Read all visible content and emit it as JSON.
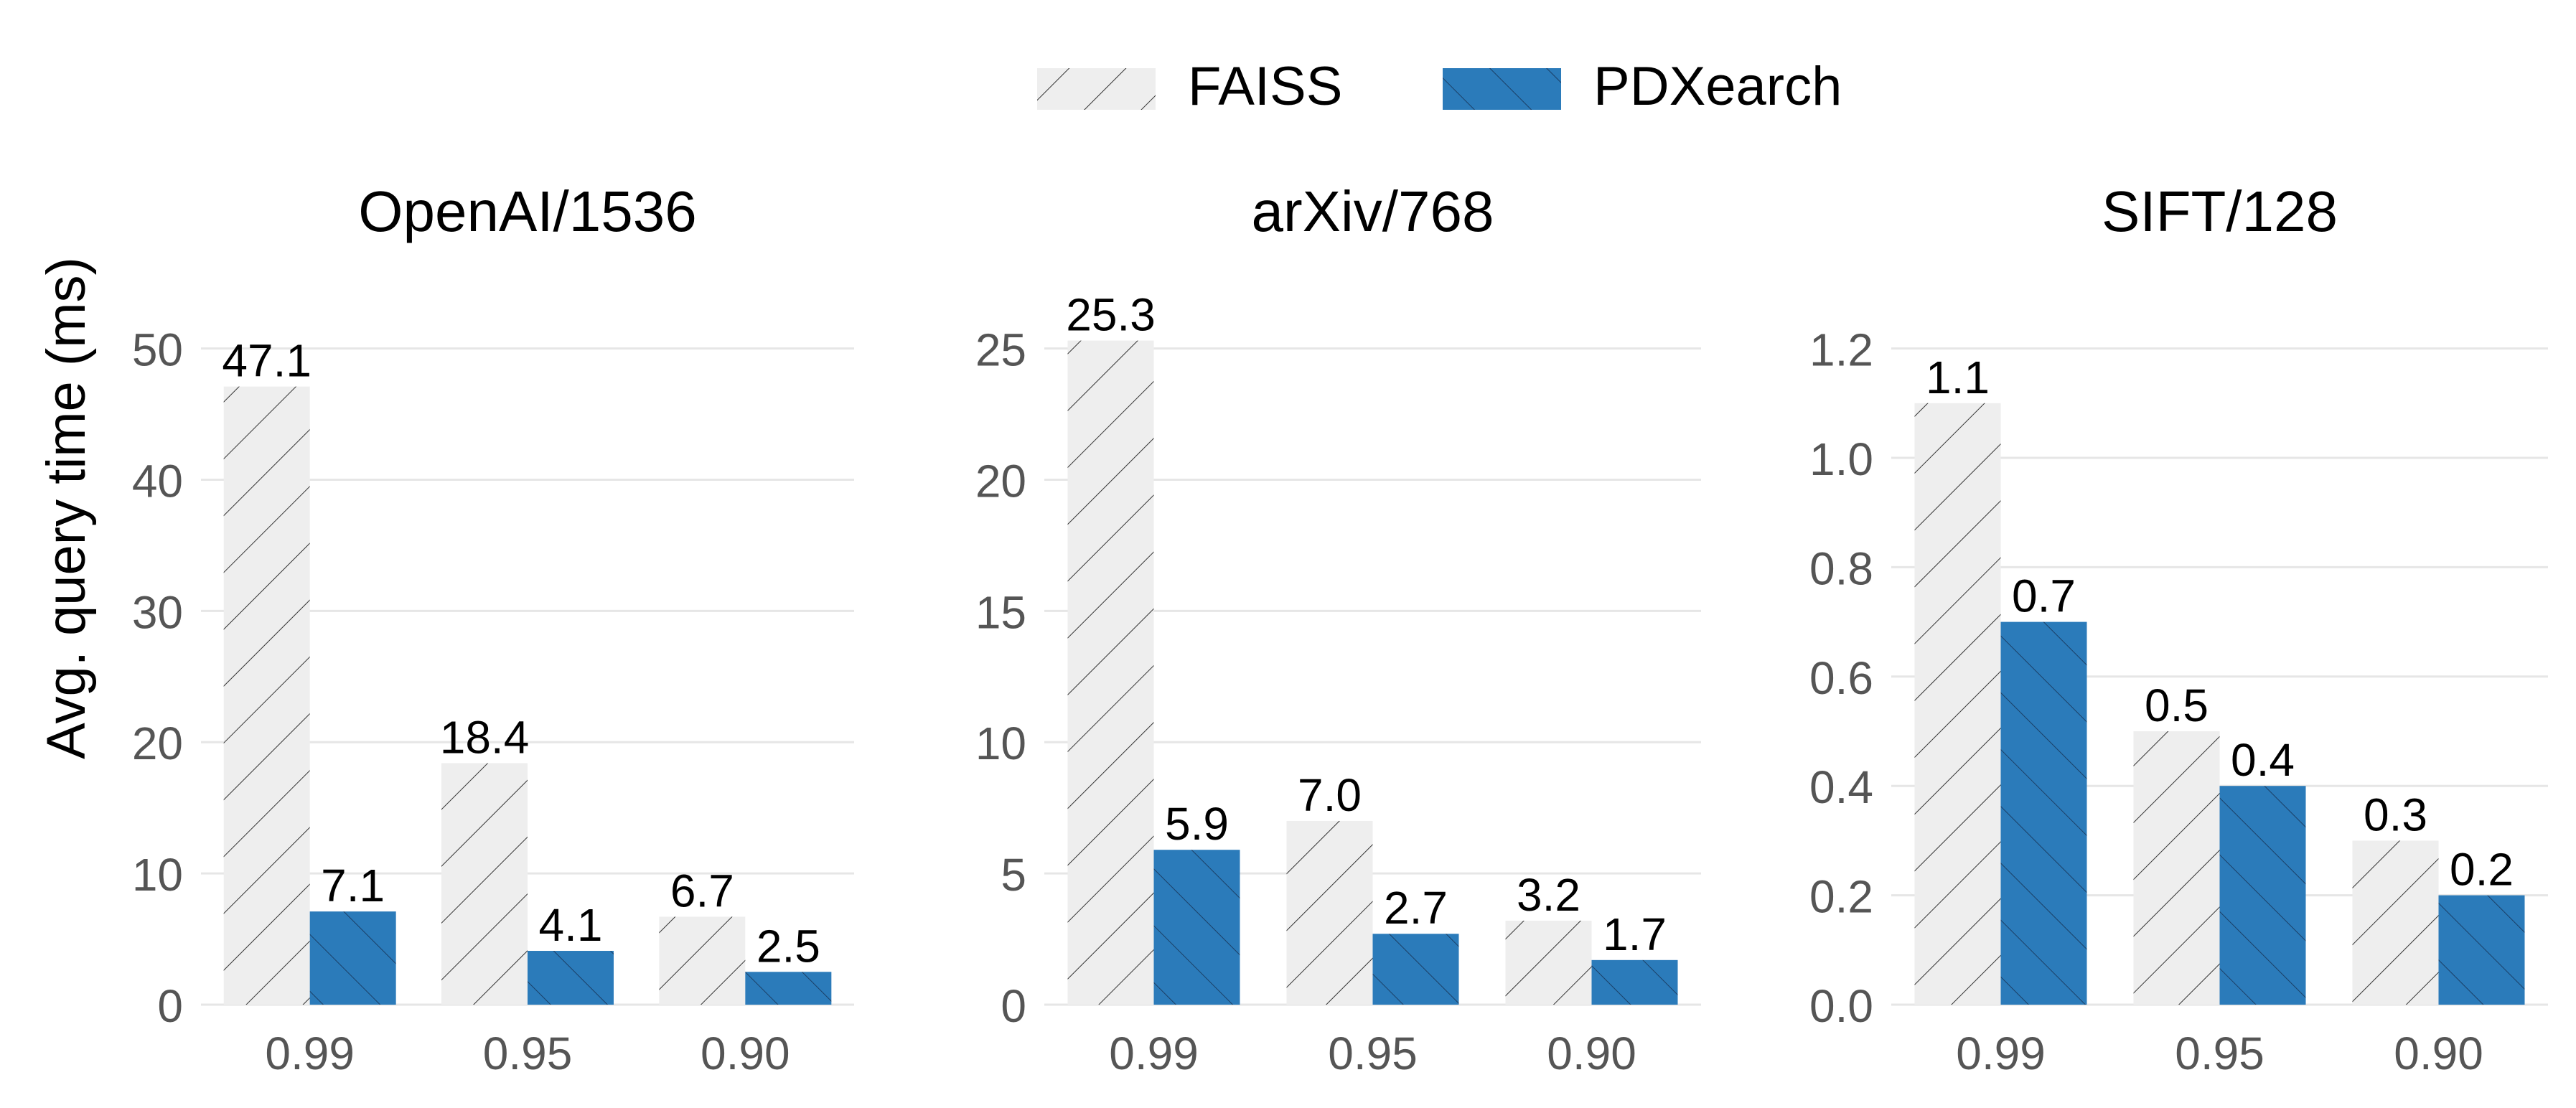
{
  "legend": {
    "position": "top-center",
    "items": [
      {
        "label": "FAISS",
        "color": "#eeeeee",
        "hatch": "forward-diagonal"
      },
      {
        "label": "PDXearch",
        "color": "#2b7bba",
        "hatch": "backward-diagonal"
      }
    ]
  },
  "y_axis_label": "Avg. query time (ms)",
  "colors": {
    "faiss": "#eeeeee",
    "pdxearch": "#2b7bba",
    "grid": "#e6e6e6",
    "tick_text": "#555555"
  },
  "chart_data": [
    {
      "type": "bar",
      "title": "OpenAI/1536",
      "ylabel": "Avg. query time (ms)",
      "categories": [
        "0.99",
        "0.95",
        "0.90"
      ],
      "series": [
        {
          "name": "FAISS",
          "values": [
            47.1,
            18.4,
            6.7
          ],
          "labels": [
            "47.1",
            "18.4",
            "6.7"
          ]
        },
        {
          "name": "PDXearch",
          "values": [
            7.1,
            4.1,
            2.5
          ],
          "labels": [
            "7.1",
            "4.1",
            "2.5"
          ]
        }
      ],
      "ylim": [
        0,
        50
      ],
      "yticks": [
        0,
        10,
        20,
        30,
        40,
        50
      ],
      "ytick_labels": [
        "0",
        "10",
        "20",
        "30",
        "40",
        "50"
      ],
      "grid": true
    },
    {
      "type": "bar",
      "title": "arXiv/768",
      "categories": [
        "0.99",
        "0.95",
        "0.90"
      ],
      "series": [
        {
          "name": "FAISS",
          "values": [
            25.3,
            7.0,
            3.2
          ],
          "labels": [
            "25.3",
            "7.0",
            "3.2"
          ]
        },
        {
          "name": "PDXearch",
          "values": [
            5.9,
            2.7,
            1.7
          ],
          "labels": [
            "5.9",
            "2.7",
            "1.7"
          ]
        }
      ],
      "ylim": [
        0,
        25
      ],
      "yticks": [
        0,
        5,
        10,
        15,
        20,
        25
      ],
      "ytick_labels": [
        "0",
        "5",
        "10",
        "15",
        "20",
        "25"
      ],
      "grid": true
    },
    {
      "type": "bar",
      "title": "SIFT/128",
      "categories": [
        "0.99",
        "0.95",
        "0.90"
      ],
      "series": [
        {
          "name": "FAISS",
          "values": [
            1.1,
            0.5,
            0.3
          ],
          "labels": [
            "1.1",
            "0.5",
            "0.3"
          ]
        },
        {
          "name": "PDXearch",
          "values": [
            0.7,
            0.4,
            0.2
          ],
          "labels": [
            "0.7",
            "0.4",
            "0.2"
          ]
        }
      ],
      "ylim": [
        0,
        1.2
      ],
      "yticks": [
        0,
        0.2,
        0.4,
        0.6,
        0.8,
        1.0,
        1.2
      ],
      "ytick_labels": [
        "0.0",
        "0.2",
        "0.4",
        "0.6",
        "0.8",
        "1.0",
        "1.2"
      ],
      "grid": true
    }
  ]
}
